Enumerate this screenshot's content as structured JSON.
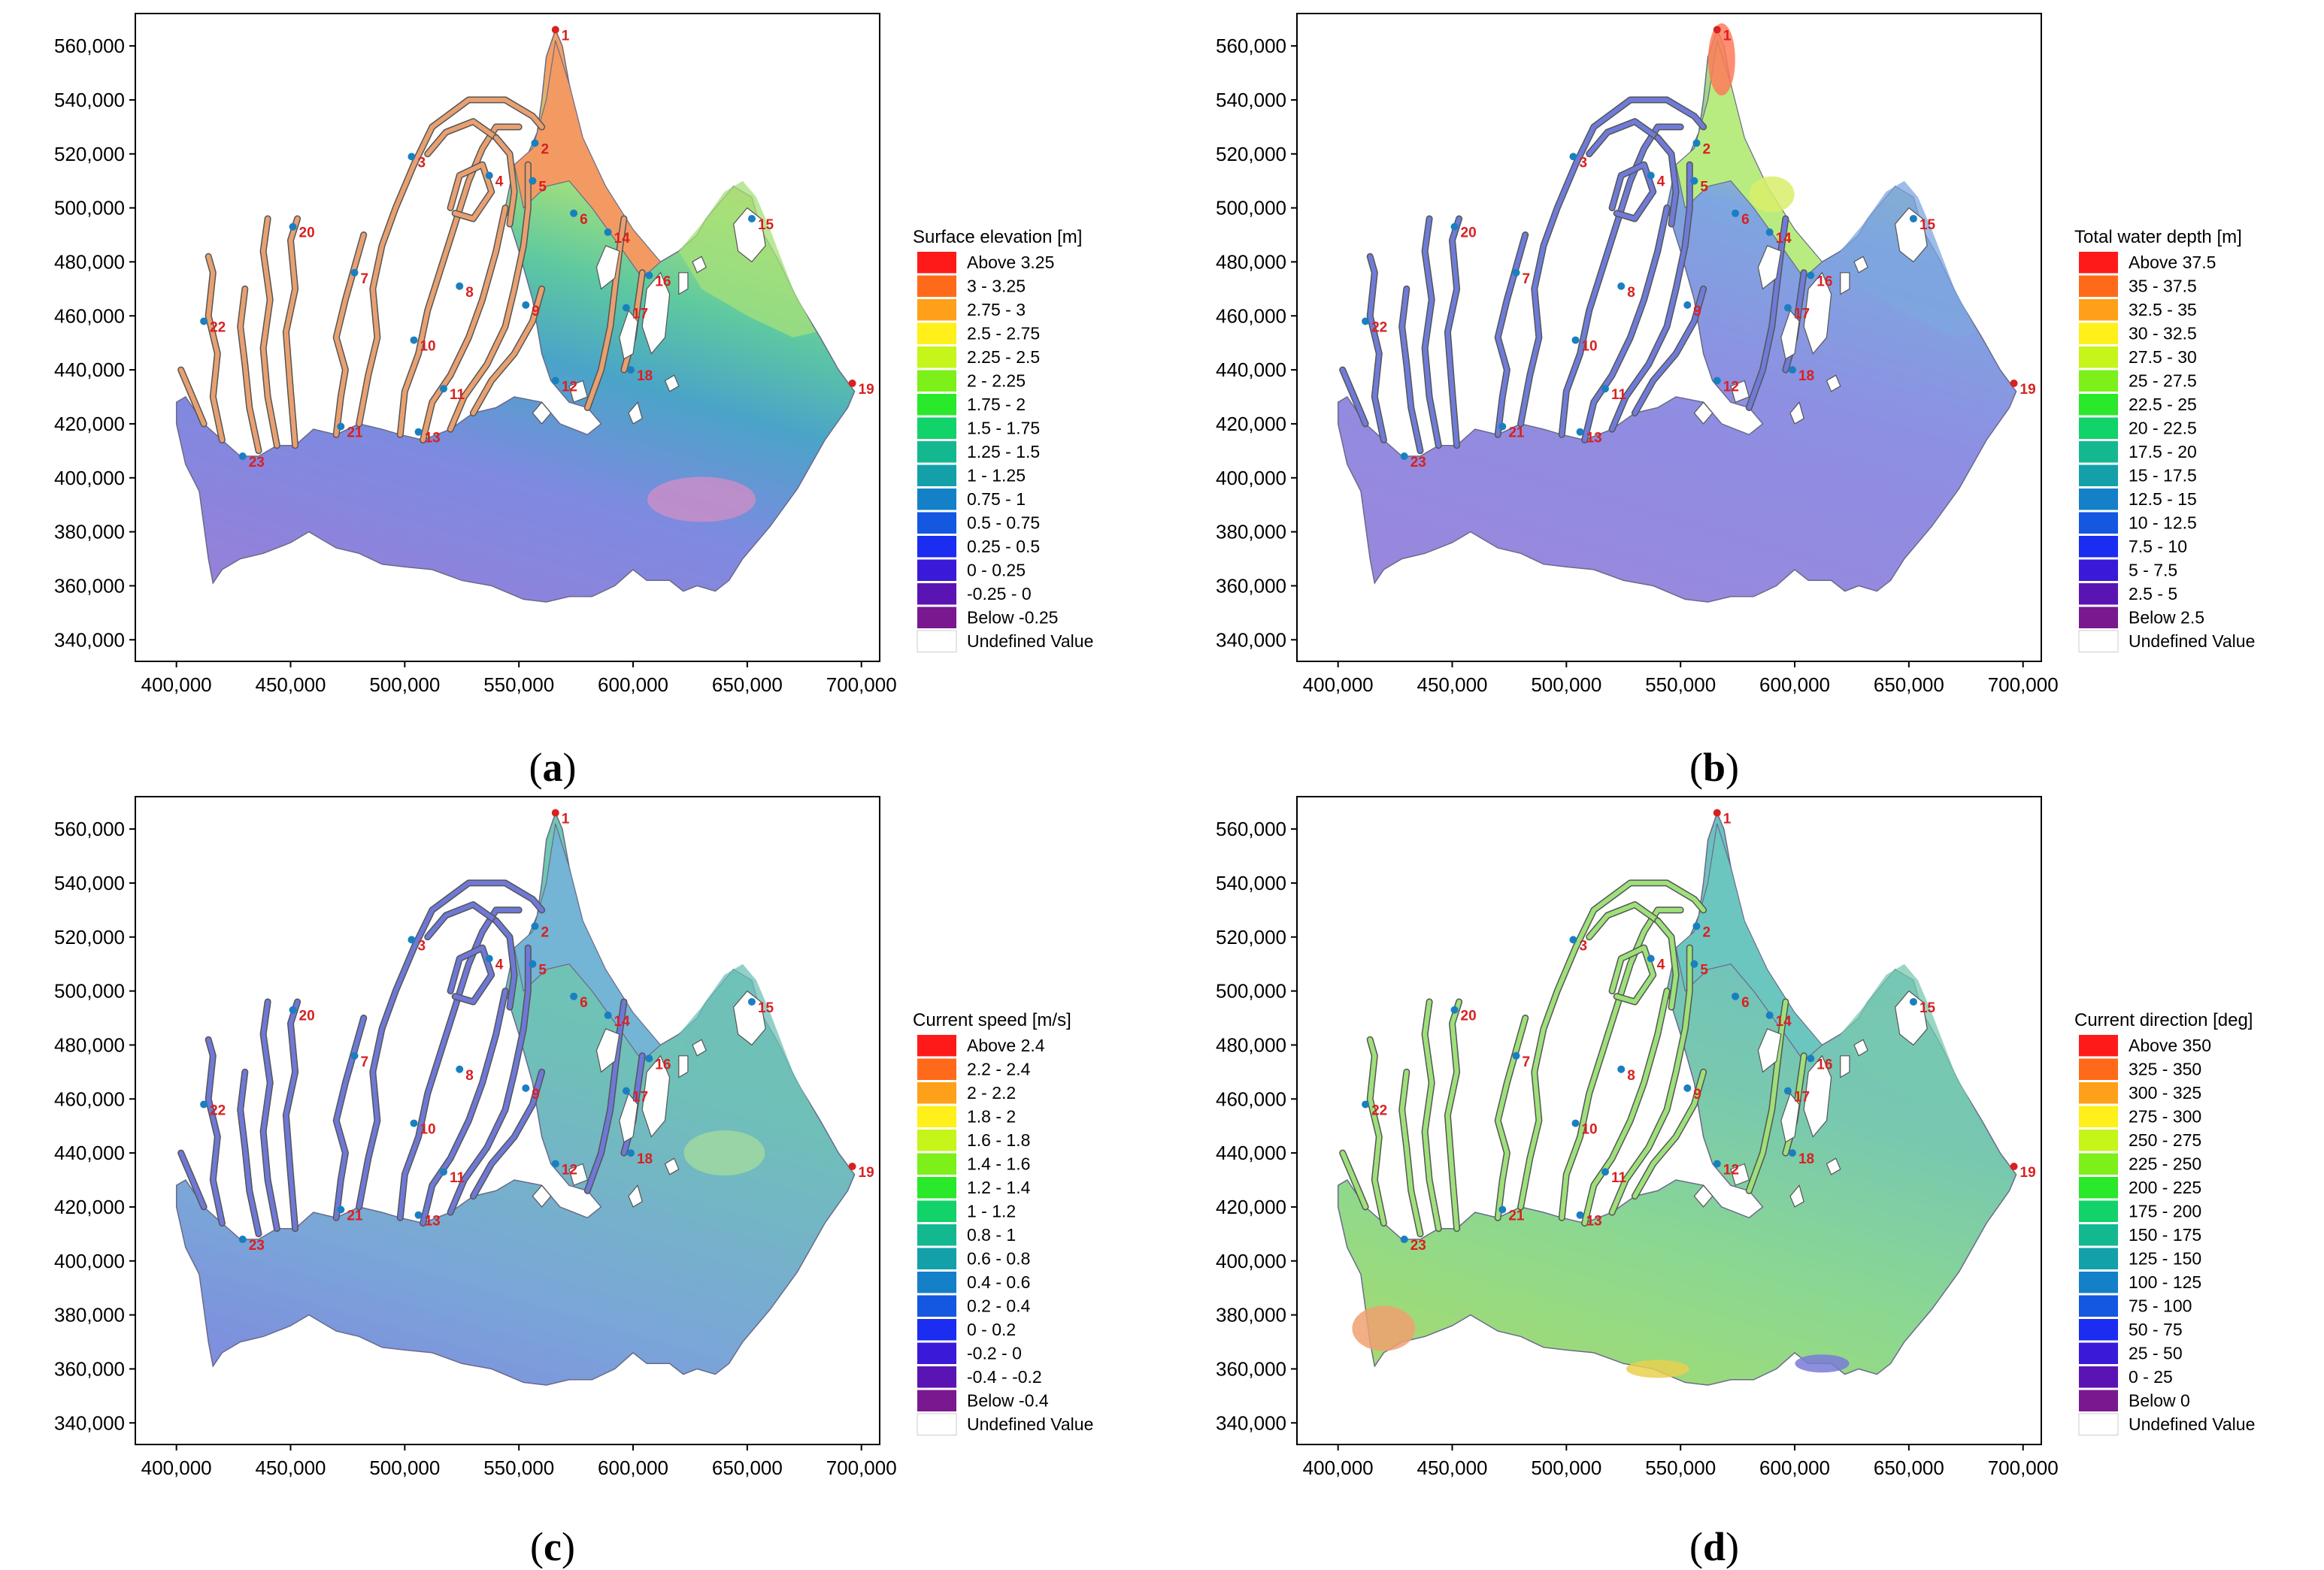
{
  "x_ticks": [
    "400,000",
    "450,000",
    "500,000",
    "550,000",
    "600,000",
    "650,000",
    "700,000"
  ],
  "y_ticks": [
    "340,000",
    "360,000",
    "380,000",
    "400,000",
    "420,000",
    "440,000",
    "460,000",
    "480,000",
    "500,000",
    "520,000",
    "540,000",
    "560,000"
  ],
  "stations": [
    {
      "id": "1",
      "x": 566000,
      "y": 566000,
      "color": "#d92020"
    },
    {
      "id": "2",
      "x": 557000,
      "y": 524000,
      "color": "#1a7fc0"
    },
    {
      "id": "3",
      "x": 503000,
      "y": 519000,
      "color": "#1a7fc0"
    },
    {
      "id": "4",
      "x": 537000,
      "y": 512000,
      "color": "#1a7fc0"
    },
    {
      "id": "5",
      "x": 556000,
      "y": 510000,
      "color": "#1a7fc0"
    },
    {
      "id": "6",
      "x": 574000,
      "y": 498000,
      "color": "#1a7fc0"
    },
    {
      "id": "7",
      "x": 478000,
      "y": 476000,
      "color": "#1a7fc0"
    },
    {
      "id": "8",
      "x": 524000,
      "y": 471000,
      "color": "#1a7fc0"
    },
    {
      "id": "9",
      "x": 553000,
      "y": 464000,
      "color": "#1a7fc0"
    },
    {
      "id": "10",
      "x": 504000,
      "y": 451000,
      "color": "#1a7fc0"
    },
    {
      "id": "11",
      "x": 517000,
      "y": 433000,
      "color": "#1a7fc0"
    },
    {
      "id": "12",
      "x": 566000,
      "y": 436000,
      "color": "#1a7fc0"
    },
    {
      "id": "13",
      "x": 506000,
      "y": 417000,
      "color": "#1a7fc0"
    },
    {
      "id": "14",
      "x": 589000,
      "y": 491000,
      "color": "#1a7fc0"
    },
    {
      "id": "15",
      "x": 652000,
      "y": 496000,
      "color": "#1a7fc0"
    },
    {
      "id": "16",
      "x": 607000,
      "y": 475000,
      "color": "#1a7fc0"
    },
    {
      "id": "17",
      "x": 597000,
      "y": 463000,
      "color": "#1a7fc0"
    },
    {
      "id": "18",
      "x": 599000,
      "y": 440000,
      "color": "#1a7fc0"
    },
    {
      "id": "19",
      "x": 696000,
      "y": 435000,
      "color": "#d92020"
    },
    {
      "id": "20",
      "x": 451000,
      "y": 493000,
      "color": "#1a7fc0"
    },
    {
      "id": "21",
      "x": 472000,
      "y": 419000,
      "color": "#1a7fc0"
    },
    {
      "id": "22",
      "x": 412000,
      "y": 458000,
      "color": "#1a7fc0"
    },
    {
      "id": "23",
      "x": 429000,
      "y": 408000,
      "color": "#1a7fc0"
    }
  ],
  "panels": [
    {
      "caption_letter": "a",
      "legend_title": "Surface elevation [m]",
      "legend": [
        {
          "label": "Above  3.25",
          "color": "#ff1a1a"
        },
        {
          "label": "3 -  3.25",
          "color": "#ff6a1a"
        },
        {
          "label": "2.75 -     3",
          "color": "#ffa01a"
        },
        {
          "label": "2.5 -  2.75",
          "color": "#ffef1a"
        },
        {
          "label": "2.25 -    2.5",
          "color": "#c6f51a"
        },
        {
          "label": "2 -  2.25",
          "color": "#7df01a"
        },
        {
          "label": "1.75 -     2",
          "color": "#2ae82a"
        },
        {
          "label": "1.5 -  1.75",
          "color": "#12d26a"
        },
        {
          "label": "1.25 -    1.5",
          "color": "#14b890"
        },
        {
          "label": "1 -  1.25",
          "color": "#13a0a8"
        },
        {
          "label": "0.75 -     1",
          "color": "#1480c8"
        },
        {
          "label": "0.5 -  0.75",
          "color": "#1457e0"
        },
        {
          "label": "0.25 -    0.5",
          "color": "#1a2df0"
        },
        {
          "label": "0 -  0.25",
          "color": "#3a1ad8"
        },
        {
          "label": "-0.25 -     0",
          "color": "#5a14b4"
        },
        {
          "label": "Below  -0.25",
          "color": "#7a1890"
        },
        {
          "label": "Undefined Value",
          "color": "#ffffff"
        }
      ]
    },
    {
      "caption_letter": "b",
      "legend_title": "Total water depth [m]",
      "legend": [
        {
          "label": "Above 37.5",
          "color": "#ff1a1a"
        },
        {
          "label": "35 - 37.5",
          "color": "#ff6a1a"
        },
        {
          "label": "32.5 -    35",
          "color": "#ffa01a"
        },
        {
          "label": "30 - 32.5",
          "color": "#ffef1a"
        },
        {
          "label": "27.5 -    30",
          "color": "#c6f51a"
        },
        {
          "label": "25 - 27.5",
          "color": "#7df01a"
        },
        {
          "label": "22.5 -    25",
          "color": "#2ae82a"
        },
        {
          "label": "20 - 22.5",
          "color": "#12d26a"
        },
        {
          "label": "17.5 -    20",
          "color": "#14b890"
        },
        {
          "label": "15 - 17.5",
          "color": "#13a0a8"
        },
        {
          "label": "12.5 -    15",
          "color": "#1480c8"
        },
        {
          "label": "10 - 12.5",
          "color": "#1457e0"
        },
        {
          "label": "7.5 -    10",
          "color": "#1a2df0"
        },
        {
          "label": "5 -   7.5",
          "color": "#3a1ad8"
        },
        {
          "label": "2.5 -     5",
          "color": "#5a14b4"
        },
        {
          "label": "Below  2.5",
          "color": "#7a1890"
        },
        {
          "label": "Undefined Value",
          "color": "#ffffff"
        }
      ]
    },
    {
      "caption_letter": "c",
      "legend_title": "Current speed [m/s]",
      "legend": [
        {
          "label": "Above  2.4",
          "color": "#ff1a1a"
        },
        {
          "label": "2.2 -   2.4",
          "color": "#ff6a1a"
        },
        {
          "label": "2 -   2.2",
          "color": "#ffa01a"
        },
        {
          "label": "1.8 -     2",
          "color": "#ffef1a"
        },
        {
          "label": "1.6 -   1.8",
          "color": "#c6f51a"
        },
        {
          "label": "1.4 -   1.6",
          "color": "#7df01a"
        },
        {
          "label": "1.2 -   1.4",
          "color": "#2ae82a"
        },
        {
          "label": "1 -   1.2",
          "color": "#12d26a"
        },
        {
          "label": "0.8 -     1",
          "color": "#14b890"
        },
        {
          "label": "0.6 -   0.8",
          "color": "#13a0a8"
        },
        {
          "label": "0.4 -   0.6",
          "color": "#1480c8"
        },
        {
          "label": "0.2 -   0.4",
          "color": "#1457e0"
        },
        {
          "label": "0 -   0.2",
          "color": "#1a2df0"
        },
        {
          "label": "-0.2 -     0",
          "color": "#3a1ad8"
        },
        {
          "label": "-0.4 -  -0.2",
          "color": "#5a14b4"
        },
        {
          "label": "Below  -0.4",
          "color": "#7a1890"
        },
        {
          "label": "Undefined Value",
          "color": "#ffffff"
        }
      ]
    },
    {
      "caption_letter": "d",
      "legend_title": "Current direction [deg]",
      "legend": [
        {
          "label": "Above 350",
          "color": "#ff1a1a"
        },
        {
          "label": "325 - 350",
          "color": "#ff6a1a"
        },
        {
          "label": "300 - 325",
          "color": "#ffa01a"
        },
        {
          "label": "275 - 300",
          "color": "#ffef1a"
        },
        {
          "label": "250 - 275",
          "color": "#c6f51a"
        },
        {
          "label": "225 - 250",
          "color": "#7df01a"
        },
        {
          "label": "200 - 225",
          "color": "#2ae82a"
        },
        {
          "label": "175 - 200",
          "color": "#12d26a"
        },
        {
          "label": "150 - 175",
          "color": "#14b890"
        },
        {
          "label": "125 - 150",
          "color": "#13a0a8"
        },
        {
          "label": "100 - 125",
          "color": "#1480c8"
        },
        {
          "label": "75 - 100",
          "color": "#1457e0"
        },
        {
          "label": "50 -   75",
          "color": "#1a2df0"
        },
        {
          "label": "25 -   50",
          "color": "#3a1ad8"
        },
        {
          "label": "0 -   25",
          "color": "#5a14b4"
        },
        {
          "label": "Below     0",
          "color": "#7a1890"
        },
        {
          "label": "Undefined Value",
          "color": "#ffffff"
        }
      ]
    }
  ]
}
